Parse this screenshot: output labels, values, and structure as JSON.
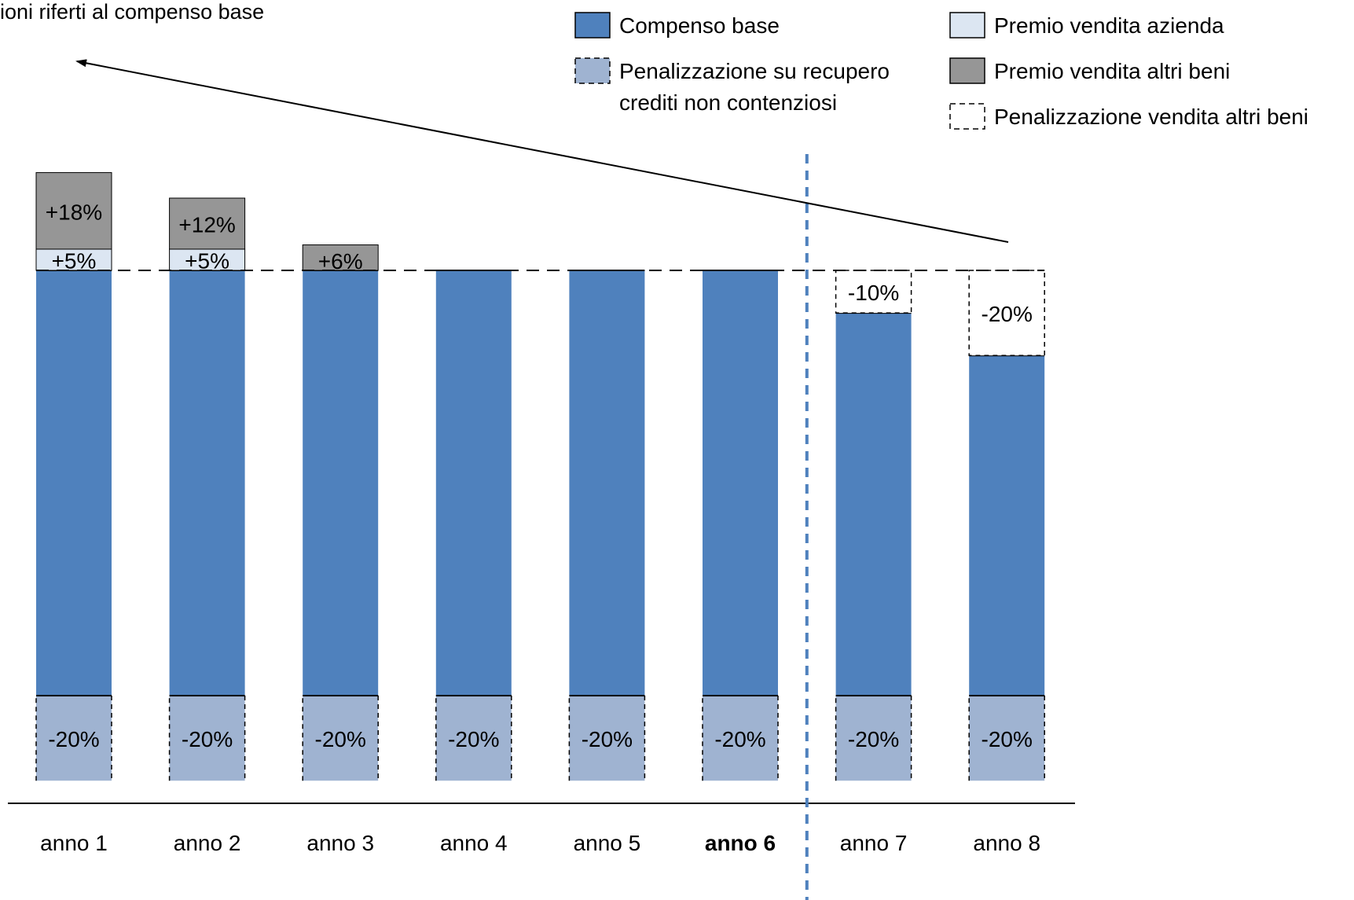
{
  "page": {
    "title": "ioni riferti al compenso base"
  },
  "chart_data": {
    "type": "bar",
    "stacked": true,
    "categories": [
      "anno 1",
      "anno 2",
      "anno 3",
      "anno 4",
      "anno 5",
      "anno 6",
      "anno 7",
      "anno 8"
    ],
    "highlight_category": "anno 6",
    "series": [
      {
        "name": "Compenso base",
        "color": "#4f81bd",
        "style": "solid",
        "values": [
          100,
          100,
          100,
          100,
          100,
          100,
          90,
          80
        ],
        "labels": [
          "",
          "",
          "",
          "",
          "",
          "",
          "",
          ""
        ]
      },
      {
        "name": "Premio vendita azienda",
        "color": "#dce6f2",
        "style": "solid",
        "values": [
          5,
          5,
          0,
          0,
          0,
          0,
          0,
          0
        ],
        "labels": [
          "+5%",
          "+5%",
          "",
          "",
          "",
          "",
          "",
          ""
        ]
      },
      {
        "name": "Premio vendita altri beni",
        "color": "#969696",
        "style": "solid",
        "values": [
          18,
          12,
          6,
          0,
          0,
          0,
          0,
          0
        ],
        "labels": [
          "+18%",
          "+12%",
          "+6%",
          "",
          "",
          "",
          "",
          ""
        ]
      },
      {
        "name": "Penalizzazione vendita altri beni",
        "color": "#ffffff",
        "style": "dashed",
        "values": [
          0,
          0,
          0,
          0,
          0,
          0,
          -10,
          -20
        ],
        "labels": [
          "",
          "",
          "",
          "",
          "",
          "",
          "-10%",
          "-20%"
        ]
      },
      {
        "name": "Penalizzazione su recupero crediti non contenziosi",
        "color": "#9fb3d1",
        "style": "dashed",
        "values": [
          -20,
          -20,
          -20,
          -20,
          -20,
          -20,
          -20,
          -20
        ],
        "labels": [
          "-20%",
          "-20%",
          "-20%",
          "-20%",
          "-20%",
          "-20%",
          "-20%",
          "-20%"
        ]
      }
    ],
    "baseline_reference": 100,
    "legend": {
      "position": "top-right",
      "items": [
        {
          "label": "Compenso base",
          "color": "#4f81bd",
          "style": "solid"
        },
        {
          "label": "Premio vendita azienda",
          "color": "#dce6f2",
          "style": "solid"
        },
        {
          "label_lines": [
            "Penalizzazione su recupero",
            "crediti non contenziosi"
          ],
          "color": "#9fb3d1",
          "style": "dashed"
        },
        {
          "label": "Premio vendita altri beni",
          "color": "#969696",
          "style": "solid"
        },
        {
          "label": "Penalizzazione vendita altri beni",
          "color": "#ffffff",
          "style": "dashed"
        }
      ]
    },
    "trend_arrow": {
      "direction": "toward anno 1"
    },
    "vertical_separator": {
      "between": [
        "anno 6",
        "anno 7"
      ],
      "color": "#4f81bd",
      "style": "dashed"
    }
  }
}
